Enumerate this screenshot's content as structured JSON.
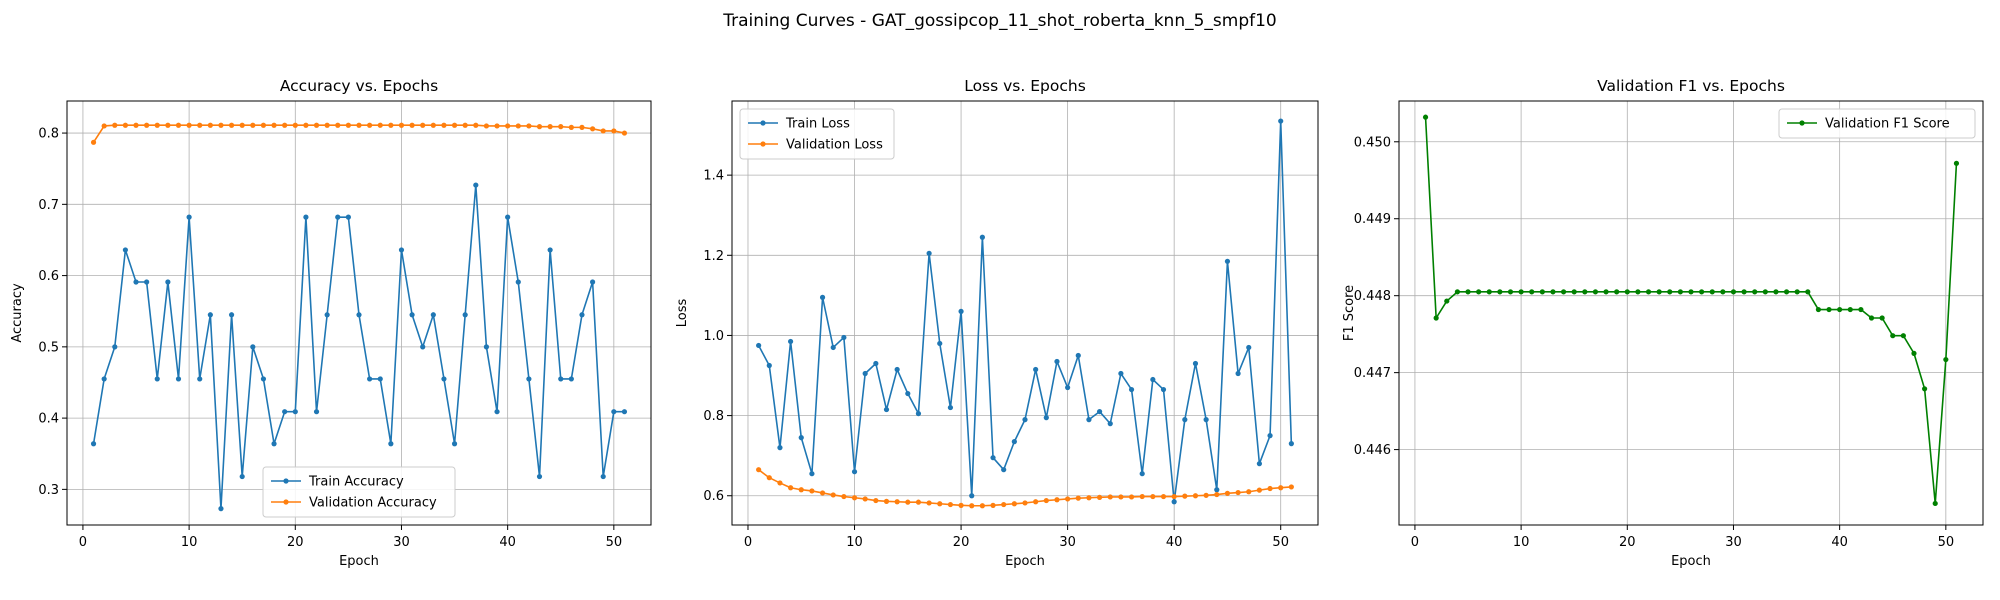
{
  "suptitle": "Training Curves - GAT_gossipcop_11_shot_roberta_knn_5_smpf10",
  "colors": {
    "train": "#1f77b4",
    "validation": "#ff7f0e",
    "f1": "#008000",
    "grid": "#b0b0b0"
  },
  "chart_data": [
    {
      "type": "line",
      "title": "Accuracy vs. Epochs",
      "xlabel": "Epoch",
      "ylabel": "Accuracy",
      "xlim": [
        -1.5,
        53.5
      ],
      "ylim": [
        0.25,
        0.845
      ],
      "xticks": [
        0,
        10,
        20,
        30,
        40,
        50
      ],
      "yticks": [
        0.3,
        0.4,
        0.5,
        0.6,
        0.7,
        0.8
      ],
      "ytick_labels": [
        "0.3",
        "0.4",
        "0.5",
        "0.6",
        "0.7",
        "0.8"
      ],
      "grid": true,
      "legend_position": "lower center",
      "x": [
        1,
        2,
        3,
        4,
        5,
        6,
        7,
        8,
        9,
        10,
        11,
        12,
        13,
        14,
        15,
        16,
        17,
        18,
        19,
        20,
        21,
        22,
        23,
        24,
        25,
        26,
        27,
        28,
        29,
        30,
        31,
        32,
        33,
        34,
        35,
        36,
        37,
        38,
        39,
        40,
        41,
        42,
        43,
        44,
        45,
        46,
        47,
        48,
        49,
        50,
        51
      ],
      "series": [
        {
          "name": "Train Accuracy",
          "color": "#1f77b4",
          "values": [
            0.364,
            0.455,
            0.5,
            0.636,
            0.591,
            0.591,
            0.455,
            0.591,
            0.455,
            0.682,
            0.455,
            0.545,
            0.273,
            0.545,
            0.318,
            0.5,
            0.455,
            0.364,
            0.409,
            0.409,
            0.682,
            0.409,
            0.545,
            0.682,
            0.682,
            0.545,
            0.455,
            0.455,
            0.364,
            0.636,
            0.545,
            0.5,
            0.545,
            0.455,
            0.364,
            0.545,
            0.727,
            0.5,
            0.409,
            0.682,
            0.591,
            0.455,
            0.318,
            0.636,
            0.455,
            0.455,
            0.545,
            0.591,
            0.318,
            0.409,
            0.409
          ]
        },
        {
          "name": "Validation Accuracy",
          "color": "#ff7f0e",
          "values": [
            0.787,
            0.81,
            0.811,
            0.811,
            0.811,
            0.811,
            0.811,
            0.811,
            0.811,
            0.811,
            0.811,
            0.811,
            0.811,
            0.811,
            0.811,
            0.811,
            0.811,
            0.811,
            0.811,
            0.811,
            0.811,
            0.811,
            0.811,
            0.811,
            0.811,
            0.811,
            0.811,
            0.811,
            0.811,
            0.811,
            0.811,
            0.811,
            0.811,
            0.811,
            0.811,
            0.811,
            0.811,
            0.81,
            0.81,
            0.81,
            0.81,
            0.81,
            0.809,
            0.809,
            0.809,
            0.808,
            0.808,
            0.806,
            0.803,
            0.803,
            0.8
          ]
        }
      ]
    },
    {
      "type": "line",
      "title": "Loss vs. Epochs",
      "xlabel": "Epoch",
      "ylabel": "Loss",
      "xlim": [
        -1.5,
        53.5
      ],
      "ylim": [
        0.527,
        1.585
      ],
      "xticks": [
        0,
        10,
        20,
        30,
        40,
        50
      ],
      "yticks": [
        0.6,
        0.8,
        1.0,
        1.2,
        1.4
      ],
      "ytick_labels": [
        "0.6",
        "0.8",
        "1.0",
        "1.2",
        "1.4"
      ],
      "grid": true,
      "legend_position": "upper left",
      "x": [
        1,
        2,
        3,
        4,
        5,
        6,
        7,
        8,
        9,
        10,
        11,
        12,
        13,
        14,
        15,
        16,
        17,
        18,
        19,
        20,
        21,
        22,
        23,
        24,
        25,
        26,
        27,
        28,
        29,
        30,
        31,
        32,
        33,
        34,
        35,
        36,
        37,
        38,
        39,
        40,
        41,
        42,
        43,
        44,
        45,
        46,
        47,
        48,
        49,
        50,
        51
      ],
      "series": [
        {
          "name": "Train Loss",
          "color": "#1f77b4",
          "values": [
            0.975,
            0.925,
            0.72,
            0.985,
            0.745,
            0.655,
            1.095,
            0.97,
            0.995,
            0.66,
            0.905,
            0.93,
            0.815,
            0.915,
            0.855,
            0.805,
            1.205,
            0.98,
            0.82,
            1.06,
            0.6,
            1.245,
            0.695,
            0.665,
            0.735,
            0.79,
            0.915,
            0.795,
            0.935,
            0.87,
            0.95,
            0.79,
            0.81,
            0.78,
            0.905,
            0.865,
            0.655,
            0.89,
            0.865,
            0.585,
            0.79,
            0.93,
            0.79,
            0.615,
            1.185,
            0.905,
            0.97,
            0.68,
            0.75,
            1.535,
            0.73
          ]
        },
        {
          "name": "Validation Loss",
          "color": "#ff7f0e",
          "values": [
            0.665,
            0.645,
            0.632,
            0.62,
            0.615,
            0.612,
            0.607,
            0.602,
            0.598,
            0.595,
            0.592,
            0.588,
            0.586,
            0.585,
            0.584,
            0.584,
            0.582,
            0.58,
            0.578,
            0.576,
            0.575,
            0.575,
            0.576,
            0.578,
            0.58,
            0.582,
            0.585,
            0.588,
            0.59,
            0.592,
            0.594,
            0.595,
            0.596,
            0.597,
            0.597,
            0.597,
            0.598,
            0.598,
            0.598,
            0.598,
            0.599,
            0.6,
            0.601,
            0.603,
            0.606,
            0.608,
            0.61,
            0.614,
            0.618,
            0.62,
            0.622
          ]
        }
      ]
    },
    {
      "type": "line",
      "title": "Validation F1 vs. Epochs",
      "xlabel": "Epoch",
      "ylabel": "F1 Score",
      "xlim": [
        -1.5,
        53.5
      ],
      "ylim": [
        0.44502,
        0.45053
      ],
      "xticks": [
        0,
        10,
        20,
        30,
        40,
        50
      ],
      "yticks": [
        0.446,
        0.447,
        0.448,
        0.449,
        0.45
      ],
      "ytick_labels": [
        "0.446",
        "0.447",
        "0.448",
        "0.449",
        "0.450"
      ],
      "grid": true,
      "legend_position": "upper right",
      "x": [
        1,
        2,
        3,
        4,
        5,
        6,
        7,
        8,
        9,
        10,
        11,
        12,
        13,
        14,
        15,
        16,
        17,
        18,
        19,
        20,
        21,
        22,
        23,
        24,
        25,
        26,
        27,
        28,
        29,
        30,
        31,
        32,
        33,
        34,
        35,
        36,
        37,
        38,
        39,
        40,
        41,
        42,
        43,
        44,
        45,
        46,
        47,
        48,
        49,
        50,
        51
      ],
      "series": [
        {
          "name": "Validation F1 Score",
          "color": "#008000",
          "values": [
            0.45032,
            0.44771,
            0.44793,
            0.44805,
            0.44805,
            0.44805,
            0.44805,
            0.44805,
            0.44805,
            0.44805,
            0.44805,
            0.44805,
            0.44805,
            0.44805,
            0.44805,
            0.44805,
            0.44805,
            0.44805,
            0.44805,
            0.44805,
            0.44805,
            0.44805,
            0.44805,
            0.44805,
            0.44805,
            0.44805,
            0.44805,
            0.44805,
            0.44805,
            0.44805,
            0.44805,
            0.44805,
            0.44805,
            0.44805,
            0.44805,
            0.44805,
            0.44805,
            0.44782,
            0.44782,
            0.44782,
            0.44782,
            0.44782,
            0.44771,
            0.44771,
            0.44748,
            0.44748,
            0.44725,
            0.44679,
            0.4453,
            0.44717,
            0.44972
          ]
        }
      ]
    }
  ]
}
